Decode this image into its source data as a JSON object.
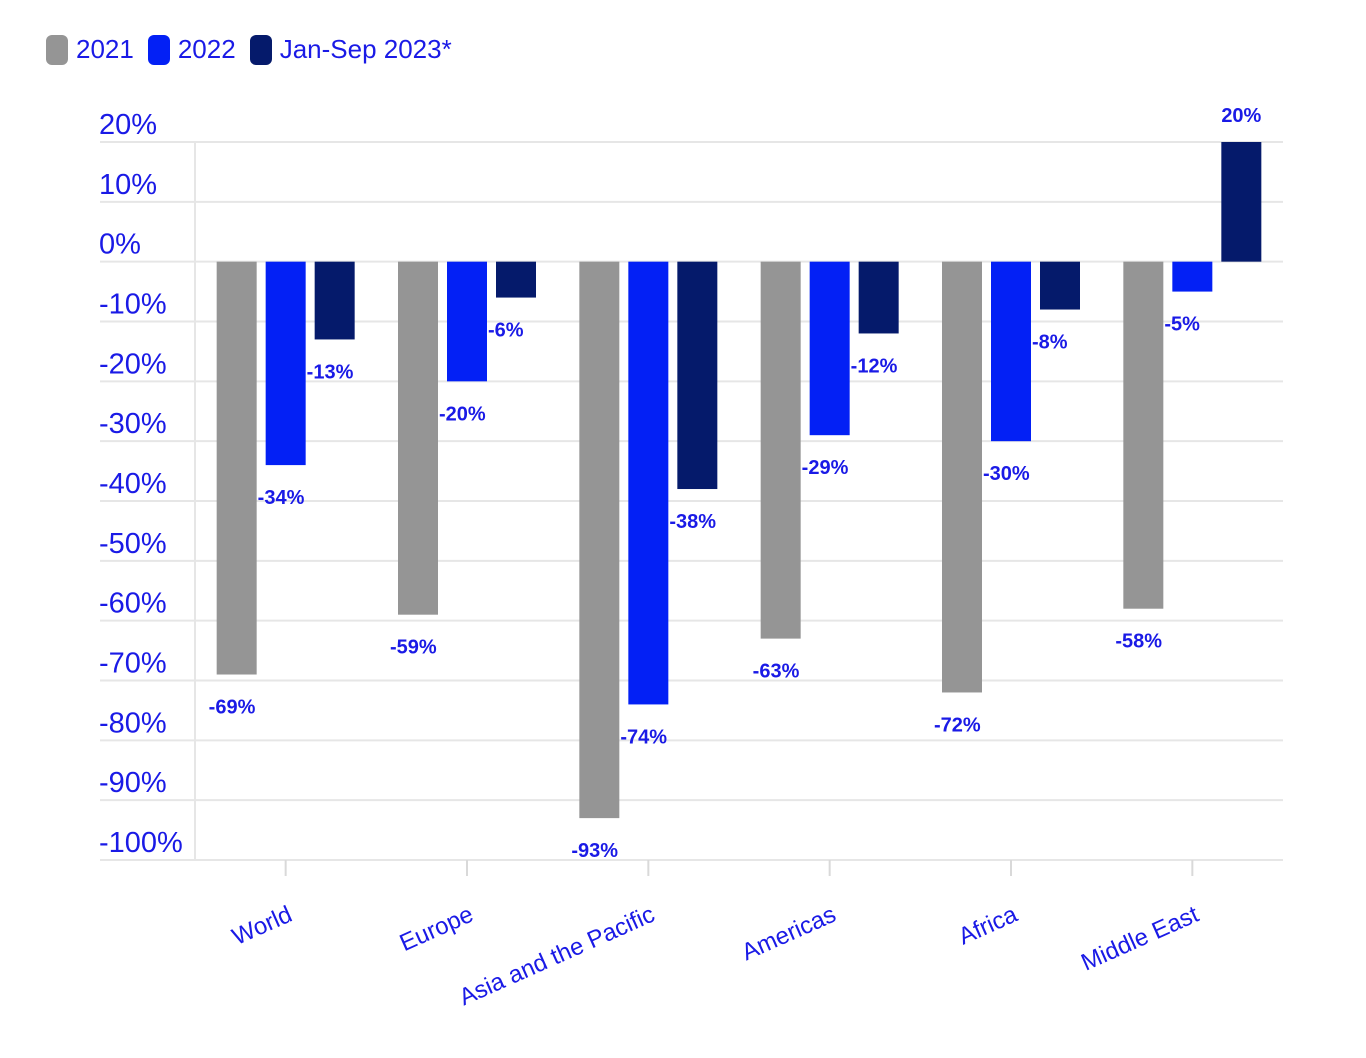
{
  "chart_data": {
    "type": "bar",
    "categories": [
      "World",
      "Europe",
      "Asia and the Pacific",
      "Americas",
      "Africa",
      "Middle East"
    ],
    "series": [
      {
        "name": "2021",
        "color": "#959595",
        "values": [
          -69,
          -59,
          -93,
          -63,
          -72,
          -58
        ],
        "labels": [
          "-69%",
          "-59%",
          "-93%",
          "-63%",
          "-72%",
          "-58%"
        ]
      },
      {
        "name": "2022",
        "color": "#0320f5",
        "values": [
          -34,
          -20,
          -74,
          -29,
          -30,
          -5
        ],
        "labels": [
          "-34%",
          "-20%",
          "-74%",
          "-29%",
          "-30%",
          "-5%"
        ]
      },
      {
        "name": "Jan-Sep 2023*",
        "color": "#051a6b",
        "values": [
          -13,
          -6,
          -38,
          -12,
          -8,
          20
        ],
        "labels": [
          "-13%",
          "-6%",
          "-38%",
          "-12%",
          "-8%",
          "20%"
        ]
      }
    ],
    "y_ticks": [
      20,
      10,
      0,
      -10,
      -20,
      -30,
      -40,
      -50,
      -60,
      -70,
      -80,
      -90,
      -100
    ],
    "y_tick_labels": [
      "20%",
      "10%",
      "0%",
      "-10%",
      "-20%",
      "-30%",
      "-40%",
      "-50%",
      "-60%",
      "-70%",
      "-80%",
      "-90%",
      "-100%"
    ],
    "ylim": [
      -100,
      20
    ],
    "grid": true,
    "legend_position": "top-left",
    "label_color": "#1a1ae6"
  }
}
